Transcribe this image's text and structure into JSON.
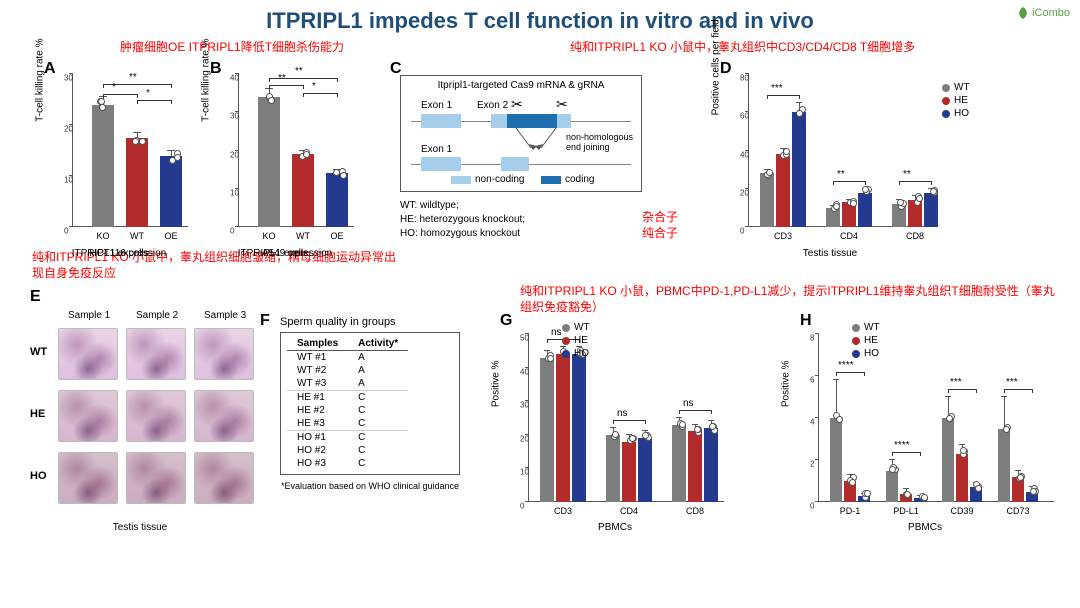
{
  "title": "ITPRIPL1 impedes T cell function in vitro and in vivo",
  "logo_text": "iCombo",
  "colors": {
    "gray": "#7d7d7d",
    "red": "#b32b2b",
    "blue": "#233a8f",
    "wt_dot": "#7d7d7d",
    "he_dot": "#b32b2b",
    "ho_dot": "#233a8f",
    "exon_noncoding": "#a6cdea",
    "exon_coding": "#1f6fb0",
    "histo_bg": "#e4cfe2",
    "anno": "#ff0000",
    "title_color": "#1f4e79"
  },
  "annotations": {
    "top_left": "肿瘤细胞OE ITPRIPL1降低T细胞杀伤能力",
    "top_right": "纯和ITPRIPL1 KO 小鼠中，睾丸组织中CD3/CD4/CD8 T细胞增多",
    "mid_left": "纯和ITPRIPL1 KO 小鼠中，睾丸组织细胞皱缩，精母细胞运动异常出现自身免疫反应",
    "mid_right": "纯和ITPRIPL1 KO 小鼠，PBMC中PD-1,PD-L1减少，提示ITPRIPL1维持睾丸组织T细胞耐受性（睾丸组织免疫豁免）",
    "het_label": "杂合子",
    "hom_label": "纯合子"
  },
  "panelA": {
    "label": "A",
    "ylab": "T-cell killing rate %",
    "xlab": "ITPRIPL1 expression",
    "caption": "HCT116 cells",
    "ylim": [
      0,
      30
    ],
    "ytick_step": 10,
    "categories": [
      "KO",
      "WT",
      "OE"
    ],
    "values": [
      24,
      17.5,
      14
    ],
    "err": [
      1.5,
      1,
      1
    ],
    "colors": [
      "#7d7d7d",
      "#b32b2b",
      "#233a8f"
    ],
    "sig": [
      {
        "a": 0,
        "b": 2,
        "label": "**",
        "y": 28
      },
      {
        "a": 0,
        "b": 1,
        "label": "*",
        "y": 26
      },
      {
        "a": 1,
        "b": 2,
        "label": "*",
        "y": 25
      }
    ]
  },
  "panelB": {
    "label": "B",
    "ylab": "T-cell killing rate %",
    "xlab": "ITPRIPL1 expression",
    "caption": "A549 cells",
    "ylim": [
      0,
      40
    ],
    "ytick_step": 10,
    "categories": [
      "KO",
      "WT",
      "OE"
    ],
    "values": [
      34,
      19,
      14
    ],
    "err": [
      2,
      1,
      1
    ],
    "colors": [
      "#7d7d7d",
      "#b32b2b",
      "#233a8f"
    ],
    "sig": [
      {
        "a": 0,
        "b": 2,
        "label": "**",
        "y": 39
      },
      {
        "a": 0,
        "b": 1,
        "label": "**",
        "y": 37
      },
      {
        "a": 1,
        "b": 2,
        "label": "*",
        "y": 35
      }
    ]
  },
  "panelC": {
    "label": "C",
    "title": "Itpripl1-targeted Cas9 mRNA & gRNA",
    "labels": {
      "exon1": "Exon 1",
      "exon2": "Exon 2",
      "nhej": "non-homologous end joining",
      "nc": "non-coding",
      "cd": "coding"
    },
    "genotypes": {
      "wt": "WT: wildtype;",
      "he": "HE: heterozygous knockout;",
      "ho": "HO: homozygous knockout"
    }
  },
  "panelD": {
    "label": "D",
    "ylab": "Positive cells per field",
    "caption": "Testis tissue",
    "ylim": [
      0,
      80
    ],
    "ytick_step": 20,
    "legend": [
      "WT",
      "HE",
      "HO"
    ],
    "groups": [
      "CD3",
      "CD4",
      "CD8"
    ],
    "values": {
      "CD3": [
        28,
        38,
        60
      ],
      "CD4": [
        10,
        13,
        18
      ],
      "CD8": [
        12,
        14,
        18
      ]
    },
    "err": {
      "CD3": [
        2,
        3,
        5
      ],
      "CD4": [
        1,
        1,
        2
      ],
      "CD8": [
        2,
        2,
        2
      ]
    },
    "sig": [
      {
        "group": "CD3",
        "label": "***"
      },
      {
        "group": "CD4",
        "label": "**"
      },
      {
        "group": "CD8",
        "label": "**"
      }
    ]
  },
  "panelE": {
    "label": "E",
    "rows": [
      "WT",
      "HE",
      "HO"
    ],
    "cols": [
      "Sample 1",
      "Sample 2",
      "Sample 3"
    ],
    "caption": "Testis tissue"
  },
  "panelF": {
    "label": "F",
    "title": "Sperm quality in groups",
    "headers": [
      "Samples",
      "Activity*"
    ],
    "rows": [
      [
        "WT #1",
        "A"
      ],
      [
        "WT #2",
        "A"
      ],
      [
        "WT #3",
        "A"
      ],
      [
        "HE #1",
        "C"
      ],
      [
        "HE #2",
        "C"
      ],
      [
        "HE #3",
        "C"
      ],
      [
        "HO #1",
        "C"
      ],
      [
        "HO #2",
        "C"
      ],
      [
        "HO #3",
        "C"
      ]
    ],
    "footnote": "*Evaluation based on WHO clinical guidance"
  },
  "panelG": {
    "label": "G",
    "ylab": "Positive %",
    "caption": "PBMCs",
    "ylim": [
      0,
      50
    ],
    "ytick_step": 10,
    "legend": [
      "WT",
      "HE",
      "HO"
    ],
    "groups": [
      "CD3",
      "CD4",
      "CD8"
    ],
    "values": {
      "CD3": [
        43,
        44,
        44
      ],
      "CD4": [
        20,
        18,
        19
      ],
      "CD8": [
        23,
        21,
        22
      ]
    },
    "err": {
      "CD3": [
        2,
        2,
        2
      ],
      "CD4": [
        2,
        2,
        2
      ],
      "CD8": [
        2,
        2,
        2
      ]
    },
    "sig": [
      {
        "group": "CD3",
        "label": "ns"
      },
      {
        "group": "CD4",
        "label": "ns"
      },
      {
        "group": "CD8",
        "label": "ns"
      }
    ]
  },
  "panelH": {
    "label": "H",
    "ylab": "Positive %",
    "caption": "PBMCs",
    "ylim": [
      0,
      8
    ],
    "ytick_step": 2,
    "legend": [
      "WT",
      "HE",
      "HO"
    ],
    "groups": [
      "PD-1",
      "PD-L1",
      "CD39",
      "CD73"
    ],
    "values": {
      "PD-1": [
        4,
        1,
        0.3
      ],
      "PD-L1": [
        1.5,
        0.4,
        0.2
      ],
      "CD39": [
        4,
        2.3,
        0.7
      ],
      "CD73": [
        3.5,
        1.2,
        0.5
      ]
    },
    "err": {
      "PD-1": [
        1.8,
        0.3,
        0.1
      ],
      "PD-L1": [
        0.5,
        0.2,
        0.1
      ],
      "CD39": [
        1,
        0.4,
        0.2
      ],
      "CD73": [
        1.5,
        0.3,
        0.2
      ]
    },
    "sig": [
      {
        "group": "PD-1",
        "label": "****"
      },
      {
        "group": "PD-L1",
        "label": "****"
      },
      {
        "group": "CD39",
        "label": "***"
      },
      {
        "group": "CD73",
        "label": "***"
      }
    ]
  }
}
